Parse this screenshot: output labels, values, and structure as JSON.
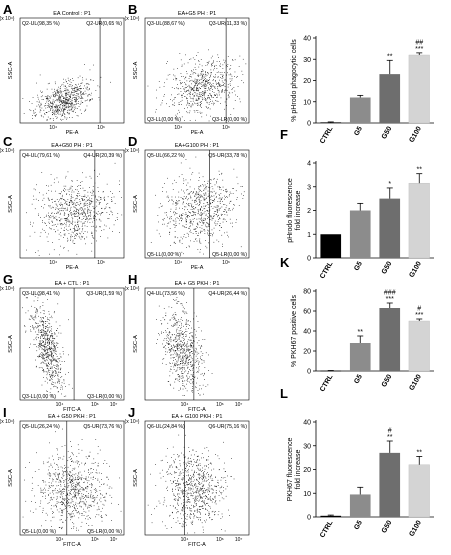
{
  "colors": {
    "ctrl": "#000000",
    "g5": "#8c8c8c",
    "g50": "#6e6e6e",
    "g100": "#d4d4d4",
    "dots": "#000000"
  },
  "flow_panels": [
    {
      "letter": "A",
      "title": "EA Control : P1",
      "ul": "Q2-UL(98,35 %)",
      "ur": "Q2-UR(0,65 %)",
      "ll": "",
      "lr": "",
      "xlabel": "PE-A",
      "ylabel": "SSC-A",
      "yexp": "(x 10⁴)",
      "xticks": [
        "10⁴",
        "10⁶"
      ]
    },
    {
      "letter": "B",
      "title": "EA+G5 PH : P1",
      "ul": "Q3-UL(88,67 %)",
      "ur": "Q3-UR(11,33 %)",
      "ll": "Q3-LL(0,00 %)",
      "lr": "Q3-LR(0,00 %)",
      "xlabel": "PE-A",
      "ylabel": "SSC-A",
      "yexp": "(x 10⁴)",
      "xticks": [
        "10⁴",
        "10⁶"
      ]
    },
    {
      "letter": "C",
      "title": "EA+G50 PH : P1",
      "ul": "Q4-UL(79,61 %)",
      "ur": "Q4-UR(20,39 %)",
      "ll": "",
      "lr": "",
      "xlabel": "PE-A",
      "ylabel": "SSC-A",
      "yexp": "(x 10⁴)",
      "xticks": [
        "10⁴",
        "10⁶"
      ]
    },
    {
      "letter": "D",
      "title": "EA+G100 PH : P1",
      "ul": "Q5-UL(66,22 %)",
      "ur": "Q5-UR(33,78 %)",
      "ll": "Q5-LL(0,00 %)",
      "lr": "Q5-LR(0,00 %)",
      "xlabel": "PE-A",
      "ylabel": "SSC-A",
      "yexp": "(x 10⁴)",
      "xticks": [
        "10⁴",
        "10⁶"
      ]
    },
    {
      "letter": "G",
      "title": "EA + CTL : P1",
      "ul": "Q3-UL(98,41 %)",
      "ur": "Q3-UR(1,59 %)",
      "ll": "Q3-LL(0,00 %)",
      "lr": "Q3-LR(0,00 %)",
      "xlabel": "FITC-A",
      "ylabel": "SSC-A",
      "yexp": "(x 10⁴)",
      "xticks": [
        "10⁴",
        "10⁶",
        "10⁷"
      ]
    },
    {
      "letter": "H",
      "title": "EA + G5 PKH : P1",
      "ul": "Q4-UL(73,56 %)",
      "ur": "Q4-UR(26,44 %)",
      "ll": "",
      "lr": "",
      "xlabel": "FITC-A",
      "ylabel": "SSC-A",
      "yexp": "(x 10⁴)",
      "xticks": [
        "10⁴",
        "10⁶",
        "10⁷"
      ]
    },
    {
      "letter": "I",
      "title": "EA + G50 PKH : P1",
      "ul": "Q5-UL(26,24 %)",
      "ur": "Q5-UR(73,76 %)",
      "ll": "Q5-LL(0,00 %)",
      "lr": "Q5-LR(0,00 %)",
      "xlabel": "FITC-A",
      "ylabel": "SSC-A",
      "yexp": "(x 10⁴)",
      "xticks": [
        "10⁴",
        "10⁶",
        "10⁷"
      ]
    },
    {
      "letter": "J",
      "title": "EA + G100 PKH : P1",
      "ul": "Q6-UL(24,84 %)",
      "ur": "Q6-UR(75,16 %)",
      "ll": "",
      "lr": "",
      "xlabel": "FITC-A",
      "ylabel": "SSC-A",
      "yexp": "(x 10⁴)",
      "xticks": [
        "10⁴",
        "10⁶",
        "10⁷"
      ]
    }
  ],
  "chart_data": [
    {
      "panel": "E",
      "type": "bar",
      "categories": [
        "CTRL",
        "G5",
        "G50",
        "G100"
      ],
      "values": [
        0.3,
        12,
        23,
        32
      ],
      "errors": [
        0.2,
        1.0,
        6.5,
        1.0
      ],
      "annotations": [
        "",
        "",
        "**",
        "##\n***"
      ],
      "ylabel": "% pHrodo phagocytic cells",
      "ylim": [
        0,
        40
      ],
      "yticks": [
        "0",
        "10",
        "20",
        "30",
        "40"
      ]
    },
    {
      "panel": "F",
      "type": "bar",
      "categories": [
        "CTRL",
        "G5",
        "G50",
        "G100"
      ],
      "values": [
        1.0,
        2.0,
        2.5,
        3.15
      ],
      "errors": [
        0.0,
        0.3,
        0.45,
        0.4
      ],
      "annotations": [
        "",
        "",
        "*",
        "**"
      ],
      "ylabel": "pHrodo fluorescence fold increase",
      "ylim": [
        0,
        4
      ],
      "yticks": [
        "0",
        "1",
        "2",
        "3",
        "4"
      ]
    },
    {
      "panel": "K",
      "type": "bar",
      "categories": [
        "CTRL",
        "G5",
        "G50",
        "G100"
      ],
      "values": [
        0.3,
        28,
        63,
        50
      ],
      "errors": [
        0.2,
        7.0,
        5.0,
        2.0
      ],
      "annotations": [
        "",
        "**",
        "###\n***",
        "#\n***"
      ],
      "ylabel": "% PKH67 positive cells",
      "ylim": [
        0,
        80
      ],
      "yticks": [
        "0",
        "20",
        "40",
        "60",
        "80"
      ]
    },
    {
      "panel": "L",
      "type": "bar",
      "categories": [
        "CTRL",
        "G5",
        "G50",
        "G100"
      ],
      "values": [
        0.5,
        9.5,
        27,
        22
      ],
      "errors": [
        0.3,
        3.0,
        5.0,
        3.5
      ],
      "annotations": [
        "",
        "",
        "#\n**",
        "**"
      ],
      "ylabel": "PKH67 fluorescence fold increase",
      "ylim": [
        0,
        40
      ],
      "yticks": [
        "0",
        "10",
        "20",
        "30",
        "40"
      ]
    }
  ]
}
